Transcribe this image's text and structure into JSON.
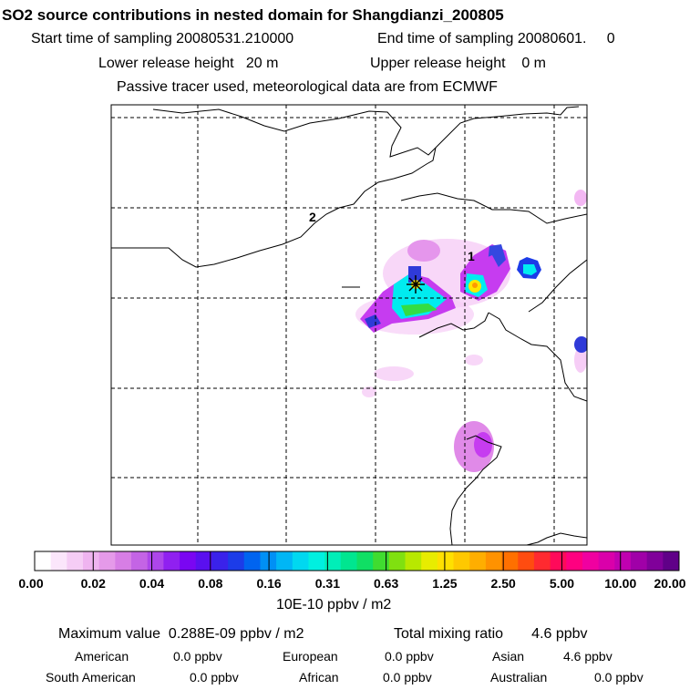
{
  "header": {
    "title": "SO2 source contributions in nested domain for Shangdianzi_200805",
    "start_label": "Start time of sampling 20080531.210000",
    "end_label": "End time of sampling 20080601.     0",
    "lower_height": "Lower release height   20 m",
    "upper_height": "Upper release height    0 m",
    "tracer_info": "Passive tracer used, meteorological data are from ECMWF"
  },
  "map": {
    "grid_labels": [
      "1",
      "2"
    ],
    "colors": {
      "low_magenta": "#f6cdf6",
      "violet": "#c63cf0",
      "blue": "#2f3ad8",
      "cyan": "#00f0f0",
      "green": "#33dd44",
      "yellow": "#ffe600",
      "orange": "#ff9900"
    }
  },
  "colorbar": {
    "labels": [
      "0.00",
      "0.02",
      "0.04",
      "0.08",
      "0.16",
      "0.31",
      "0.63",
      "1.25",
      "2.50",
      "5.00",
      "10.00",
      "20.00"
    ],
    "colors": [
      "#ffffff",
      "#fbe6fb",
      "#f5cdf5",
      "#efb4f0",
      "#e59ae9",
      "#d77ee5",
      "#c464e5",
      "#ad46ea",
      "#9020f0",
      "#7a06f2",
      "#5a10ef",
      "#3a22ea",
      "#1c3ce8",
      "#0064f0",
      "#0090f5",
      "#00b6f5",
      "#00d8f0",
      "#00f0e0",
      "#00eeb8",
      "#00e690",
      "#10df64",
      "#40dc30",
      "#80e010",
      "#b8e800",
      "#e8ec00",
      "#ffe000",
      "#ffc800",
      "#ffae00",
      "#ff9200",
      "#ff7000",
      "#ff4c10",
      "#ff2a30",
      "#ff0a5a",
      "#ff0080",
      "#f000a0",
      "#da00aa",
      "#c000b0",
      "#a000a8",
      "#80009a",
      "#600088"
    ],
    "unit": "10E-10 ppbv / m2"
  },
  "summary": {
    "max_value": "Maximum value  0.288E-09 ppbv / m2",
    "total": "Total mixing ratio       4.6 ppbv",
    "rows": [
      [
        {
          "label": "American",
          "value": "0.0 ppbv"
        },
        {
          "label": "European",
          "value": "0.0 ppbv"
        },
        {
          "label": "Asian",
          "value": "4.6 ppbv"
        }
      ],
      [
        {
          "label": "South American",
          "value": "0.0 ppbv"
        },
        {
          "label": "African",
          "value": "0.0 ppbv"
        },
        {
          "label": "Australian",
          "value": "0.0 ppbv"
        }
      ]
    ]
  }
}
